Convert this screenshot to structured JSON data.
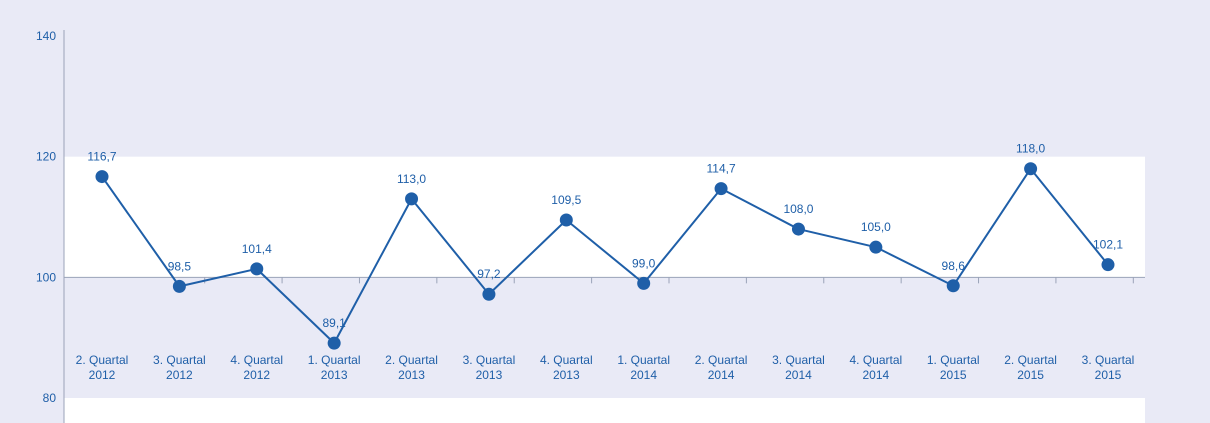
{
  "chart_data": {
    "type": "line",
    "categories": [
      [
        "2. Quartal",
        "2012"
      ],
      [
        "3. Quartal",
        "2012"
      ],
      [
        "4. Quartal",
        "2012"
      ],
      [
        "1. Quartal",
        "2013"
      ],
      [
        "2. Quartal",
        "2013"
      ],
      [
        "3. Quartal",
        "2013"
      ],
      [
        "4. Quartal",
        "2013"
      ],
      [
        "1. Quartal",
        "2014"
      ],
      [
        "2. Quartal",
        "2014"
      ],
      [
        "3. Quartal",
        "2014"
      ],
      [
        "4. Quartal",
        "2014"
      ],
      [
        "1. Quartal",
        "2015"
      ],
      [
        "2. Quartal",
        "2015"
      ],
      [
        "3. Quartal",
        "2015"
      ]
    ],
    "values": [
      116.7,
      98.5,
      101.4,
      89.1,
      113.0,
      97.2,
      109.5,
      99.0,
      114.7,
      108.0,
      105.0,
      98.6,
      118.0,
      102.1
    ],
    "value_labels": [
      "116,7",
      "98,5",
      "101,4",
      "89,1",
      "113,0",
      "97,2",
      "109,5",
      "99,0",
      "114,7",
      "108,0",
      "105,0",
      "98,6",
      "118,0",
      "102,1"
    ],
    "ylim": [
      80,
      140
    ],
    "yticks": [
      80,
      100,
      120,
      140
    ],
    "ytick_labels": [
      "80",
      "100",
      "120",
      "140"
    ],
    "baseline": 100,
    "grid": false,
    "colors": {
      "line": "#1f5fa8",
      "marker": "#1f5fa8",
      "text": "#1f5fa8",
      "background": "#e9eaf6",
      "band": "#ffffff"
    }
  }
}
